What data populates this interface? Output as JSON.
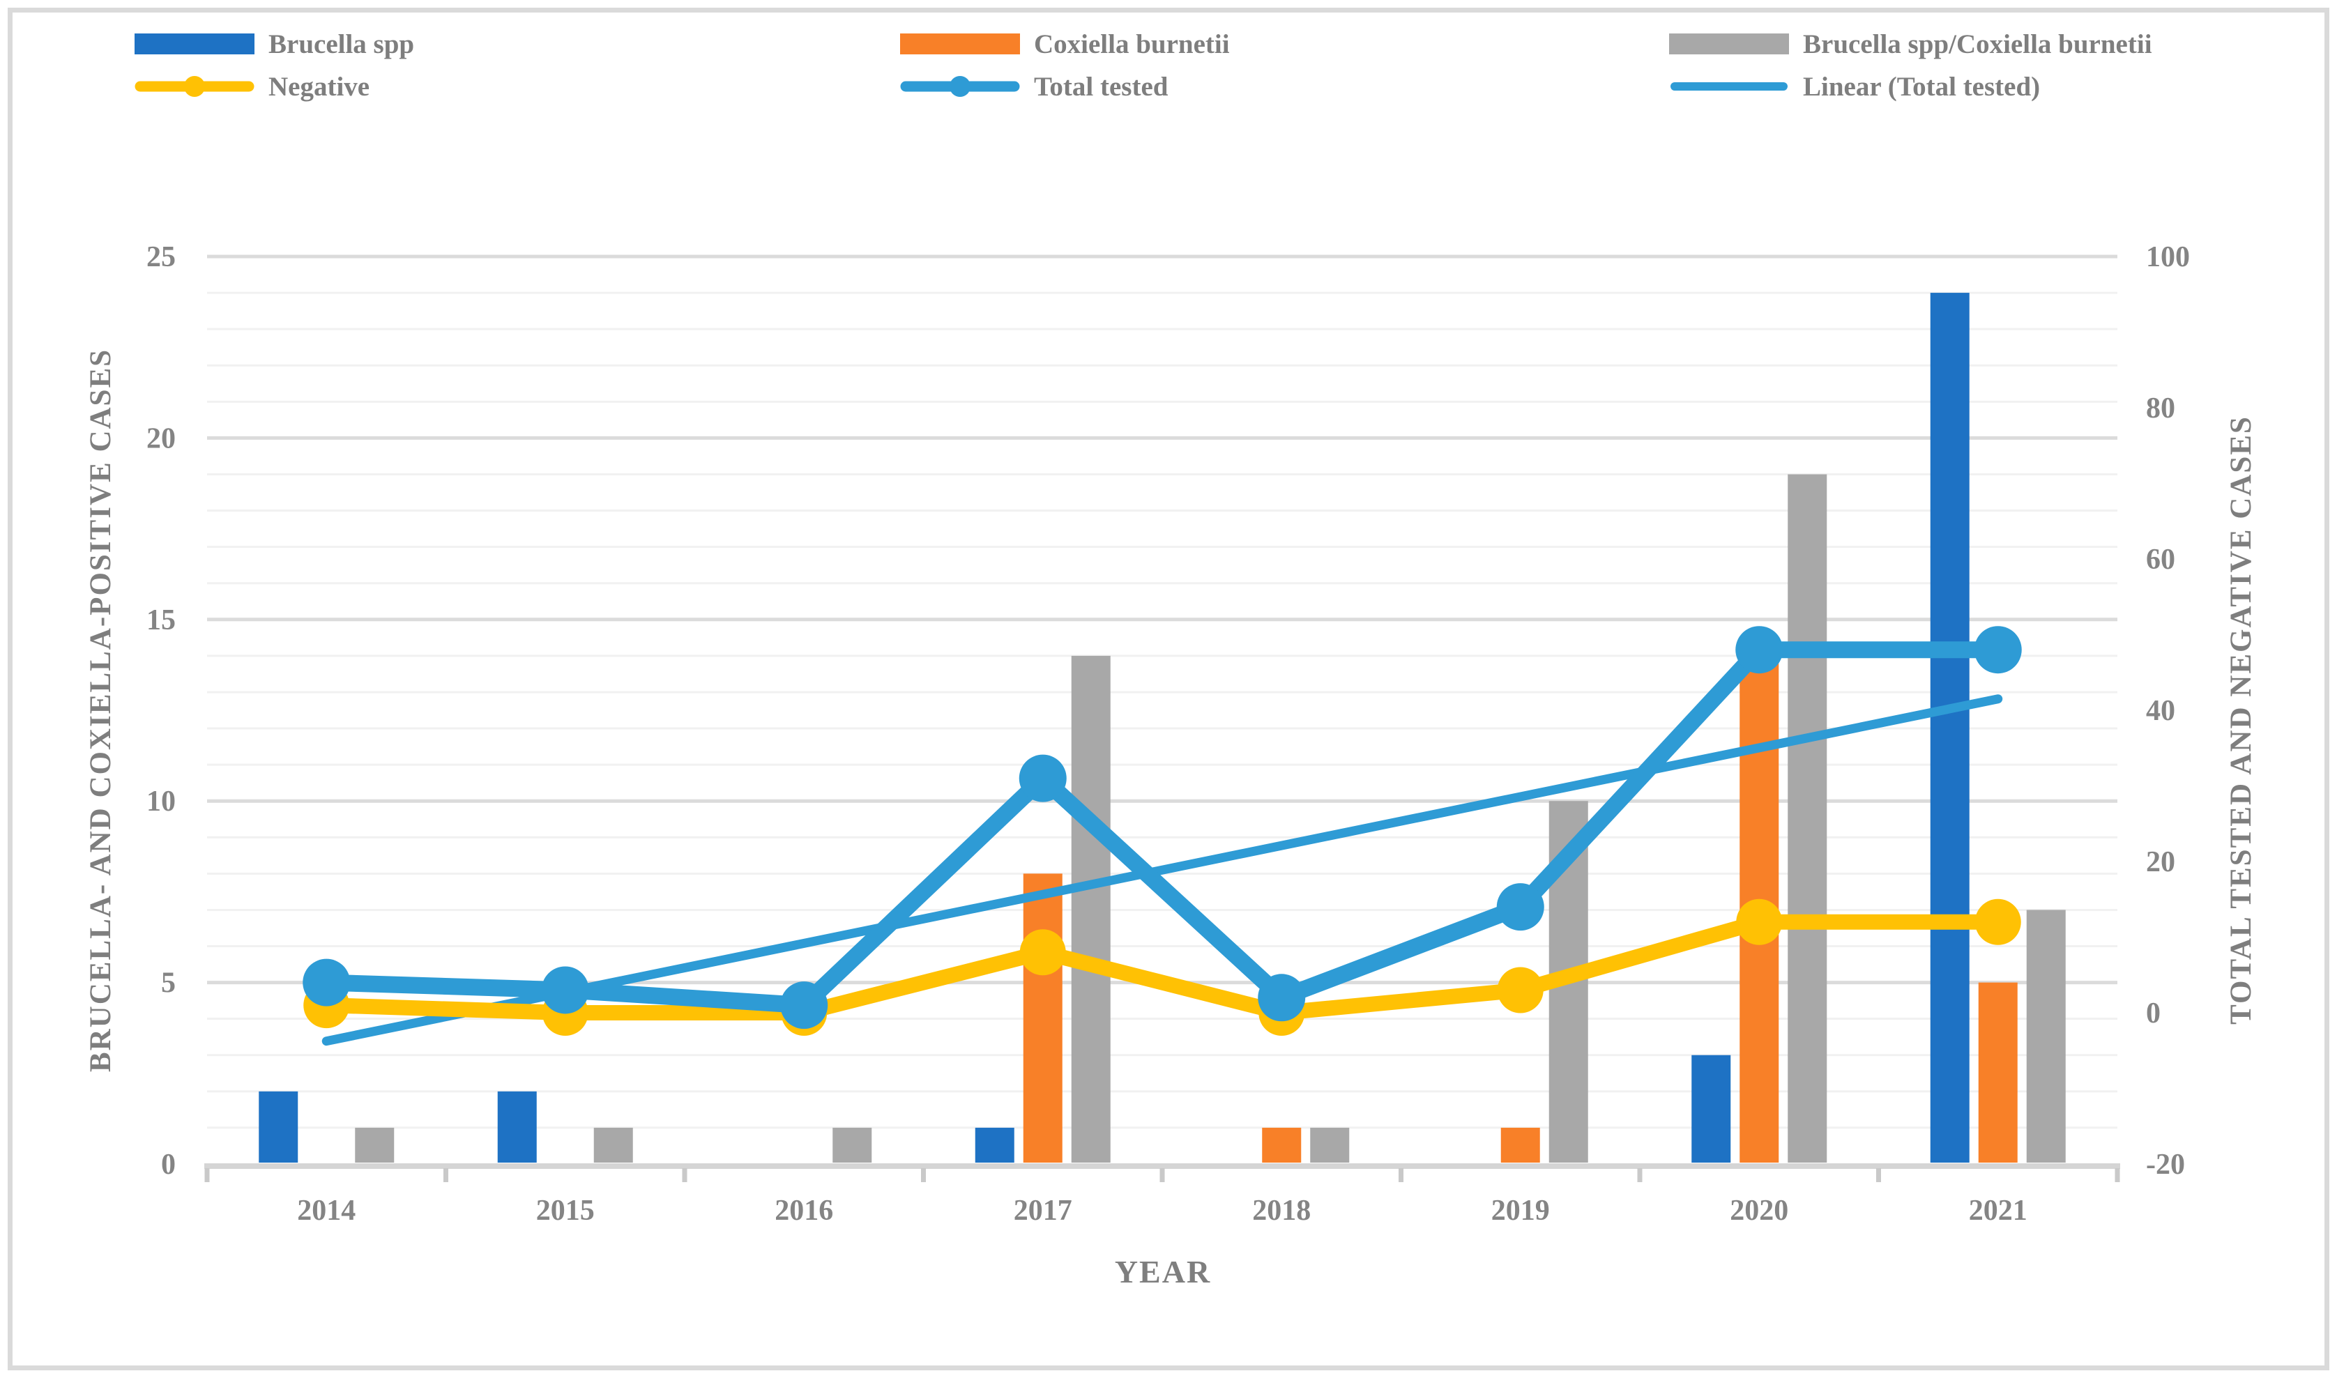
{
  "legend": {
    "items": [
      {
        "label": "Brucella spp",
        "type": "bar",
        "color": "#1E72C4"
      },
      {
        "label": "Coxiella burnetii",
        "type": "bar",
        "color": "#F88028"
      },
      {
        "label": "Brucella spp/Coxiella burnetii",
        "type": "bar",
        "color": "#A8A8A8"
      },
      {
        "label": "Negative",
        "type": "line-marker",
        "color": "#FFC104"
      },
      {
        "label": "Total tested",
        "type": "line-marker",
        "color": "#2E9BD5"
      },
      {
        "label": "Linear (Total tested)",
        "type": "line",
        "color": "#2E9BD5"
      }
    ]
  },
  "chart_data": {
    "type": "bar+line combo",
    "categories": [
      "2014",
      "2015",
      "2016",
      "2017",
      "2018",
      "2019",
      "2020",
      "2021"
    ],
    "bar_series": [
      {
        "name": "Brucella spp",
        "color": "#1E72C4",
        "axis": "left",
        "values": [
          2,
          2,
          0,
          1,
          0,
          0,
          3,
          24
        ]
      },
      {
        "name": "Coxiella burnetii",
        "color": "#F88028",
        "axis": "left",
        "values": [
          0,
          0,
          0,
          8,
          1,
          1,
          14,
          5
        ]
      },
      {
        "name": "Brucella spp/Coxiella burnetii",
        "color": "#A8A8A8",
        "axis": "left",
        "values": [
          1,
          1,
          1,
          14,
          1,
          10,
          19,
          7
        ]
      }
    ],
    "line_series": [
      {
        "name": "Negative",
        "color": "#FFC104",
        "axis": "right",
        "values": [
          1,
          0,
          0,
          8,
          0,
          3,
          12,
          12
        ],
        "stroke": 22,
        "marker_r": 33
      },
      {
        "name": "Total tested",
        "color": "#2E9BD5",
        "axis": "right",
        "values": [
          4,
          3,
          1,
          31,
          2,
          14,
          48,
          48
        ],
        "stroke": 24,
        "marker_r": 34
      }
    ],
    "trendline": {
      "name": "Linear (Total tested)",
      "color": "#2E9BD5",
      "axis": "right",
      "start_value": -3.75,
      "end_value": 41.5,
      "stroke": 13
    },
    "left_axis": {
      "title": "BRUCELLA- AND COXIELLA-POSITIVE CASES",
      "min": 0,
      "max": 25,
      "ticks": [
        25,
        20,
        15,
        10,
        5,
        0
      ]
    },
    "right_axis": {
      "title": "TOTAL TESTED AND NEGATIVE CASES",
      "min": -20,
      "max": 100,
      "ticks": [
        100,
        80,
        60,
        40,
        20,
        0,
        -20
      ]
    },
    "x_axis": {
      "title": "YEAR"
    },
    "grid": {
      "minor_step": 1,
      "major_step": 5,
      "minor_color": "#F1F1F1",
      "major_color": "#DBDBDB",
      "baseline_color": "#D5D5D5",
      "tick_color": "#C9C9C9"
    }
  }
}
